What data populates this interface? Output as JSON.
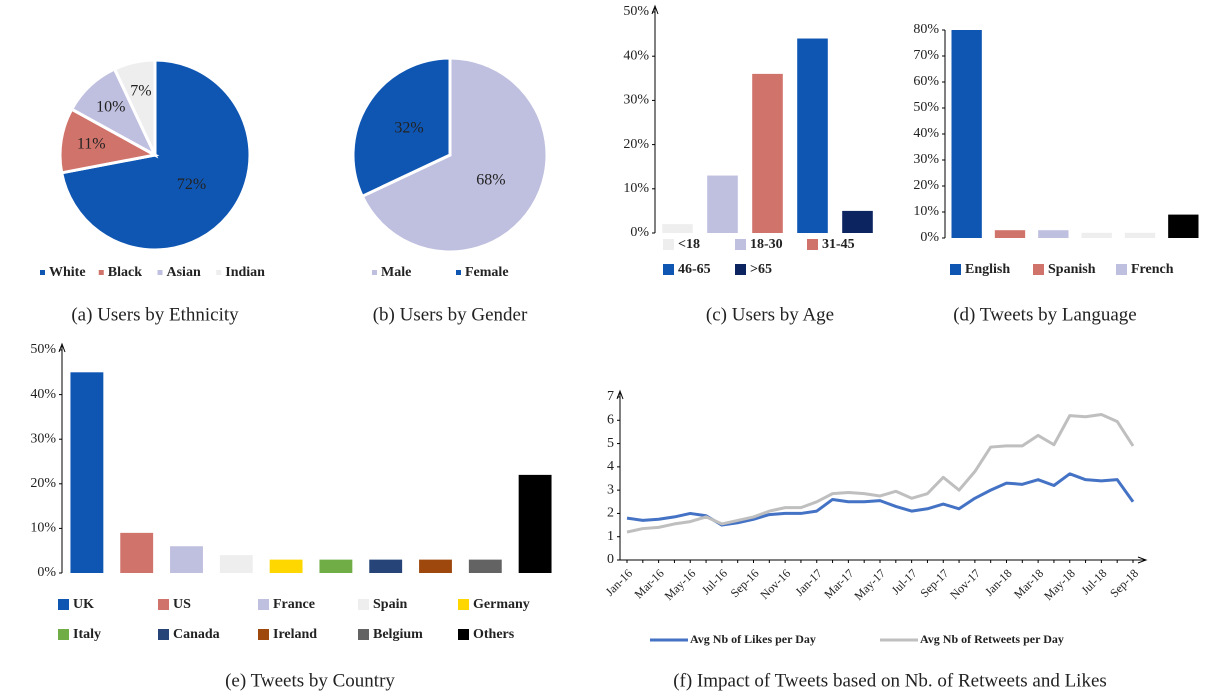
{
  "chart_data": [
    {
      "type": "pie",
      "caption": "(a) Users by Ethnicity",
      "categories": [
        "White",
        "Black",
        "Asian",
        "Indian"
      ],
      "values": [
        72,
        11,
        10,
        7
      ],
      "value_labels": [
        "72%",
        "11%",
        "10%",
        "7%"
      ],
      "colors": [
        "#0f56b3",
        "#d0736a",
        "#bfbfdf",
        "#eeeeee"
      ]
    },
    {
      "type": "pie",
      "caption": "(b) Users by Gender",
      "categories": [
        "Male",
        "Female"
      ],
      "values": [
        68,
        32
      ],
      "value_labels": [
        "68%",
        "32%"
      ],
      "colors": [
        "#bfbfdf",
        "#0f56b3"
      ]
    },
    {
      "type": "bar",
      "caption": "(c) Users by Age",
      "categories": [
        "<18",
        "18-30",
        "31-45",
        "46-65",
        ">65"
      ],
      "values": [
        2,
        13,
        36,
        44,
        5
      ],
      "colors": [
        "#eeeeee",
        "#bfbfdf",
        "#d0736a",
        "#0f56b3",
        "#0c2460"
      ],
      "ylim": [
        0,
        50
      ],
      "yticks": [
        {
          "value": 0,
          "label": "0%"
        },
        {
          "value": 10,
          "label": "10%"
        },
        {
          "value": 20,
          "label": "20%"
        },
        {
          "value": 30,
          "label": "30%"
        },
        {
          "value": 40,
          "label": "40%"
        },
        {
          "value": 50,
          "label": "50%"
        }
      ]
    },
    {
      "type": "bar",
      "caption": "(d) Tweets by Language",
      "categories": [
        "English",
        "Spanish",
        "French",
        null,
        null,
        null
      ],
      "values": [
        80,
        3,
        3,
        2,
        2,
        9
      ],
      "colors": [
        "#0f56b3",
        "#d0736a",
        "#bfbfdf",
        "#eeeeee",
        "#eeeeee",
        "#000000"
      ],
      "ylim": [
        0,
        80
      ],
      "yticks": [
        {
          "value": 0,
          "label": "0%"
        },
        {
          "value": 10,
          "label": "10%"
        },
        {
          "value": 20,
          "label": "20%"
        },
        {
          "value": 30,
          "label": "30%"
        },
        {
          "value": 40,
          "label": "40%"
        },
        {
          "value": 50,
          "label": "50%"
        },
        {
          "value": 60,
          "label": "60%"
        },
        {
          "value": 70,
          "label": "70%"
        },
        {
          "value": 80,
          "label": "80%"
        }
      ]
    },
    {
      "type": "bar",
      "caption": "(e) Tweets by Country",
      "categories": [
        "UK",
        "US",
        "France",
        "Spain",
        "Germany",
        "Italy",
        "Canada",
        "Ireland",
        "Belgium",
        "Others"
      ],
      "values": [
        45,
        9,
        6,
        4,
        3,
        3,
        3,
        3,
        3,
        22
      ],
      "colors": [
        "#0f56b3",
        "#d0736a",
        "#bfbfdf",
        "#eeeeee",
        "#ffd700",
        "#70ad47",
        "#264478",
        "#9e480e",
        "#636363",
        "#000000"
      ],
      "ylim": [
        0,
        50
      ],
      "yticks": [
        {
          "value": 0,
          "label": "0%"
        },
        {
          "value": 10,
          "label": "10%"
        },
        {
          "value": 20,
          "label": "20%"
        },
        {
          "value": 30,
          "label": "30%"
        },
        {
          "value": 40,
          "label": "40%"
        },
        {
          "value": 50,
          "label": "50%"
        }
      ]
    },
    {
      "type": "line",
      "caption": "(f) Impact of Tweets based on Nb. of Retweets and Likes",
      "categories": [
        "Jan-16",
        null,
        "Mar-16",
        null,
        "May-16",
        null,
        "Jul-16",
        null,
        "Sep-16",
        null,
        "Nov-16",
        null,
        "Jan-17",
        null,
        "Mar-17",
        null,
        "May-17",
        null,
        "Jul-17",
        null,
        "Sep-17",
        null,
        "Nov-17",
        null,
        "Jan-18",
        null,
        "Mar-18",
        null,
        "May-18",
        null,
        "Jul-18",
        null,
        "Sep-18"
      ],
      "series": [
        {
          "name": "Avg Nb of Likes per Day",
          "color": "#4472c4",
          "values": [
            1.8,
            1.7,
            1.75,
            1.85,
            2.0,
            1.9,
            1.5,
            1.6,
            1.75,
            1.95,
            2.0,
            2.0,
            2.1,
            2.6,
            2.5,
            2.5,
            2.55,
            2.3,
            2.1,
            2.2,
            2.4,
            2.2,
            2.65,
            3.0,
            3.3,
            3.25,
            3.45,
            3.2,
            3.7,
            3.45,
            3.4,
            3.45,
            2.5
          ]
        },
        {
          "name": "Avg Nb of Retweets per Day",
          "color": "#bfbfbf",
          "values": [
            1.2,
            1.35,
            1.4,
            1.55,
            1.65,
            1.85,
            1.55,
            1.7,
            1.85,
            2.1,
            2.25,
            2.25,
            2.5,
            2.85,
            2.9,
            2.85,
            2.75,
            2.95,
            2.65,
            2.85,
            3.55,
            3.0,
            3.8,
            4.85,
            4.9,
            4.9,
            5.35,
            4.95,
            6.2,
            6.15,
            6.25,
            5.95,
            4.9
          ]
        }
      ],
      "ylim": [
        0,
        7
      ],
      "yticks": [
        0,
        1,
        2,
        3,
        4,
        5,
        6,
        7
      ]
    }
  ]
}
